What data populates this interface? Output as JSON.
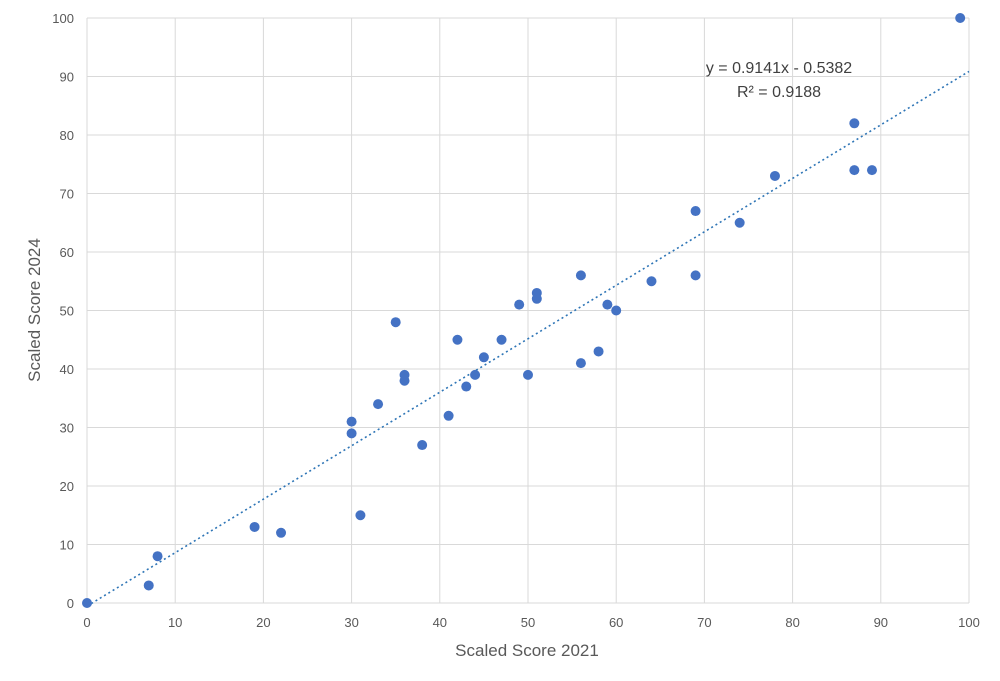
{
  "chart_data": {
    "type": "scatter",
    "xlabel": "Scaled Score 2021",
    "ylabel": "Scaled Score 2024",
    "xlim": [
      0,
      100
    ],
    "ylim": [
      0,
      100
    ],
    "xticks": [
      "0",
      "10",
      "20",
      "30",
      "40",
      "50",
      "60",
      "70",
      "80",
      "90",
      "100"
    ],
    "yticks": [
      "0",
      "10",
      "20",
      "30",
      "40",
      "50",
      "60",
      "70",
      "80",
      "90",
      "100"
    ],
    "grid": true,
    "trendline": {
      "type": "linear",
      "slope": 0.9141,
      "intercept": -0.5382,
      "equation": "y = 0.9141x - 0.5382",
      "r_squared": "R² = 0.9188",
      "style": "dotted",
      "color": "#2e75b6"
    },
    "point_color": "#4472c4",
    "points": [
      [
        0,
        0
      ],
      [
        7,
        3
      ],
      [
        8,
        8
      ],
      [
        19,
        13
      ],
      [
        22,
        12
      ],
      [
        30,
        31
      ],
      [
        30,
        29
      ],
      [
        31,
        15
      ],
      [
        33,
        34
      ],
      [
        35,
        48
      ],
      [
        36,
        39
      ],
      [
        36,
        38
      ],
      [
        38,
        27
      ],
      [
        41,
        32
      ],
      [
        42,
        45
      ],
      [
        43,
        37
      ],
      [
        44,
        39
      ],
      [
        45,
        42
      ],
      [
        47,
        45
      ],
      [
        49,
        51
      ],
      [
        50,
        39
      ],
      [
        51,
        53
      ],
      [
        51,
        52
      ],
      [
        56,
        56
      ],
      [
        56,
        41
      ],
      [
        58,
        43
      ],
      [
        59,
        51
      ],
      [
        60,
        50
      ],
      [
        64,
        55
      ],
      [
        69,
        67
      ],
      [
        69,
        56
      ],
      [
        74,
        65
      ],
      [
        78,
        73
      ],
      [
        87,
        82
      ],
      [
        87,
        74
      ],
      [
        89,
        74
      ],
      [
        99,
        100
      ]
    ]
  }
}
